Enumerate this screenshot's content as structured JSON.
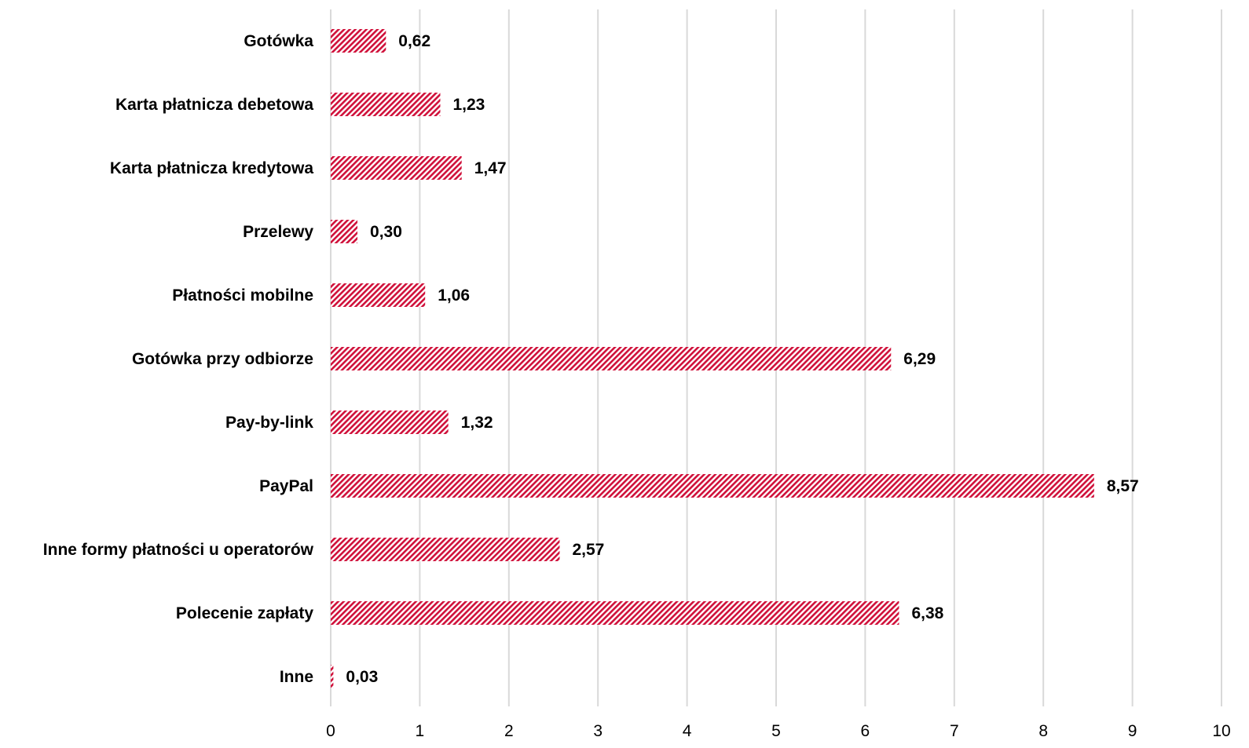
{
  "chart_data": {
    "type": "bar",
    "orientation": "horizontal",
    "categories": [
      "Gotówka",
      "Karta płatnicza debetowa",
      "Karta płatnicza kredytowa",
      "Przelewy",
      "Płatności mobilne",
      "Gotówka przy odbiorze",
      "Pay-by-link",
      "PayPal",
      "Inne formy płatności u operatorów",
      "Polecenie zapłaty",
      "Inne"
    ],
    "values": [
      0.62,
      1.23,
      1.47,
      0.3,
      1.06,
      6.29,
      1.32,
      8.57,
      2.57,
      6.38,
      0.03
    ],
    "value_labels": [
      "0,62",
      "1,23",
      "1,47",
      "0,30",
      "1,06",
      "6,29",
      "1,32",
      "8,57",
      "2,57",
      "6,38",
      "0,03"
    ],
    "xlim": [
      0,
      10
    ],
    "x_ticks": [
      "0",
      "1",
      "2",
      "3",
      "4",
      "5",
      "6",
      "7",
      "8",
      "9",
      "10"
    ],
    "grid": "vertical",
    "legend": "none",
    "bar_color": "#d0103a",
    "bar_pattern": "diagonal-hatch"
  }
}
